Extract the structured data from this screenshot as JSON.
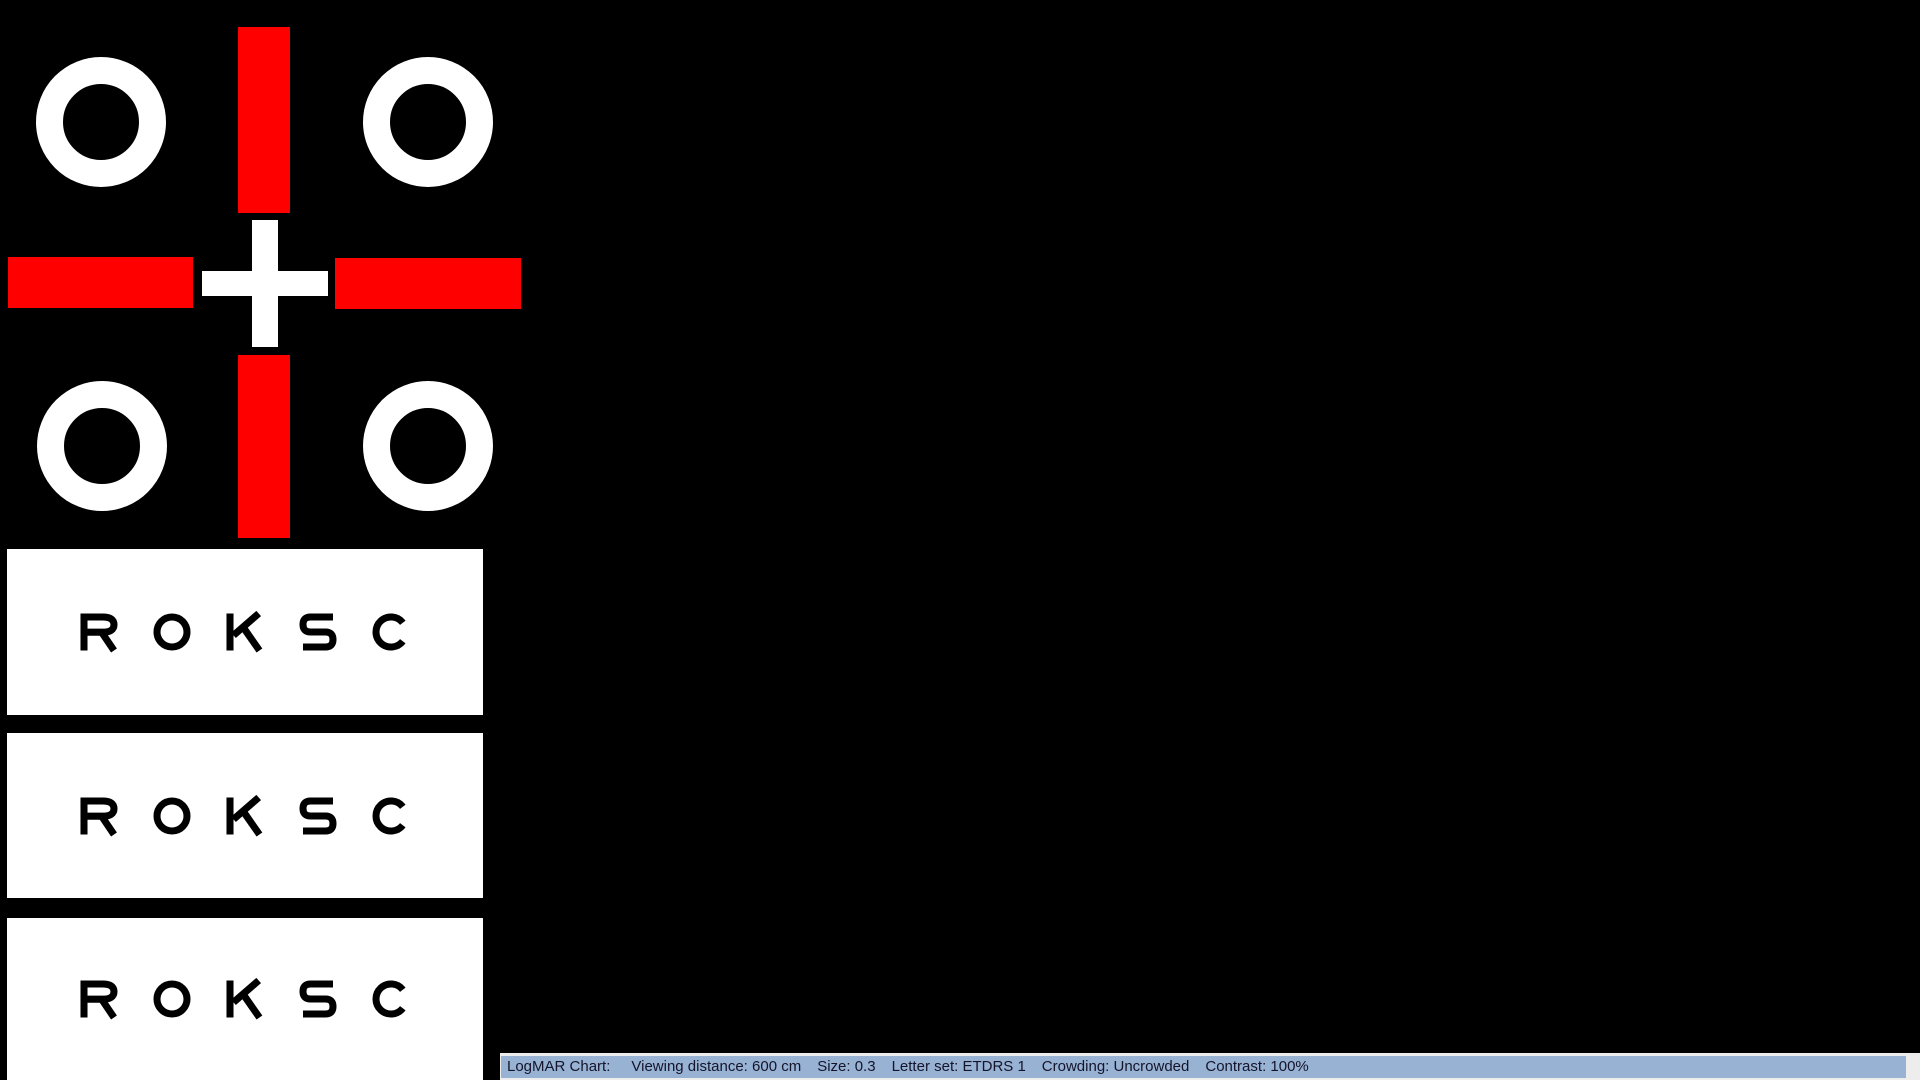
{
  "app": {
    "name": "LogMAR Chart"
  },
  "status_bar": {
    "items": [
      "LogMAR Chart:",
      "Viewing distance: 600 cm",
      "Size: 0.3",
      "Letter set: ETDRS 1",
      "Crowding: Uncrowded",
      "Contrast: 100%"
    ]
  },
  "chart": {
    "rows": [
      {
        "letters": [
          "R",
          "O",
          "K",
          "S",
          "C"
        ]
      },
      {
        "letters": [
          "R",
          "O",
          "K",
          "S",
          "C"
        ]
      },
      {
        "letters": [
          "R",
          "O",
          "K",
          "S",
          "C"
        ]
      }
    ]
  },
  "fixation": {
    "rings": 4,
    "description": "four white rings around a red cross with white central plus"
  },
  "colors": {
    "background": "#000000",
    "red": "#ff0000",
    "ring": "#ffffff",
    "cross": "#ffffff",
    "row_background": "#ffffff",
    "letter": "#000000",
    "status_bar_fill": "#98b2d4",
    "status_bar_frame": "#ededed",
    "status_text": "#14142a"
  }
}
